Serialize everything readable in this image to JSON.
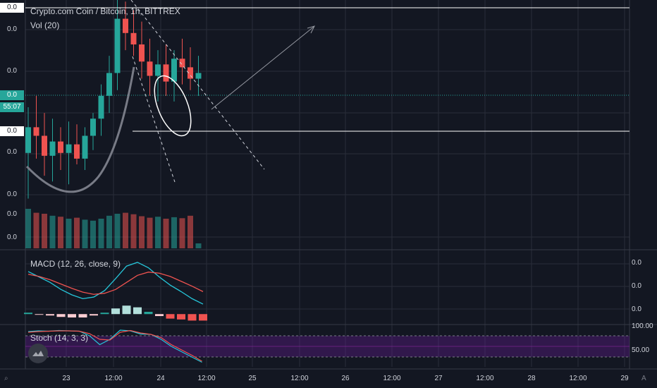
{
  "header": {
    "title": "Crypto.com Coin / Bitcoin, 1h, BITTREX",
    "vol_legend": "Vol (20)",
    "macd_legend": "MACD (12, 26, close, 9)",
    "stoch_legend": "Stoch (14, 3, 3)"
  },
  "price_axis": {
    "labels": [
      "0.0",
      "0.0",
      "0.0",
      "0.0",
      "0.0",
      "0.0",
      "0.0",
      "0.0",
      "0.0"
    ],
    "countdown": "55:07"
  },
  "macd_axis": {
    "labels": [
      "0.0",
      "0.0",
      "0.0"
    ]
  },
  "stoch_axis": {
    "labels": [
      "100.00",
      "50.00"
    ]
  },
  "time_axis": {
    "labels": [
      "23",
      "12:00",
      "24",
      "12:00",
      "25",
      "12:00",
      "26",
      "12:00",
      "27",
      "12:00",
      "28",
      "12:00",
      "29"
    ]
  },
  "corner_buttons": {
    "timezone_marker": "⌕",
    "auto": "A"
  },
  "colors": {
    "background": "#131722",
    "up": "#26a69a",
    "down": "#ef5350",
    "macd_line": "#26c6da",
    "signal_line": "#ef5350",
    "stoch_band": "#6a1b9a"
  },
  "chart_data": [
    {
      "type": "candlestick",
      "title": "Crypto.com Coin / Bitcoin, 1h, BITTREX",
      "x": [
        "22 18:00",
        "22 20:00",
        "22 22:00",
        "23 00:00",
        "23 02:00",
        "23 04:00",
        "23 06:00",
        "23 08:00",
        "23 10:00",
        "23 12:00",
        "23 14:00",
        "23 16:00",
        "23 18:00",
        "23 20:00",
        "23 22:00",
        "24 00:00",
        "24 02:00",
        "24 04:00",
        "24 06:00",
        "24 08:00",
        "24 10:00",
        "24 12:00"
      ],
      "series": [
        {
          "values": [
            {
              "o": 0.46,
              "h": 0.62,
              "l": 0.3,
              "c": 0.55
            },
            {
              "o": 0.55,
              "h": 0.66,
              "l": 0.44,
              "c": 0.52
            },
            {
              "o": 0.52,
              "h": 0.6,
              "l": 0.38,
              "c": 0.45
            },
            {
              "o": 0.45,
              "h": 0.58,
              "l": 0.36,
              "c": 0.5
            },
            {
              "o": 0.5,
              "h": 0.55,
              "l": 0.4,
              "c": 0.46
            },
            {
              "o": 0.46,
              "h": 0.57,
              "l": 0.35,
              "c": 0.49
            },
            {
              "o": 0.49,
              "h": 0.56,
              "l": 0.42,
              "c": 0.44
            },
            {
              "o": 0.44,
              "h": 0.55,
              "l": 0.4,
              "c": 0.52
            },
            {
              "o": 0.52,
              "h": 0.6,
              "l": 0.47,
              "c": 0.58
            },
            {
              "o": 0.58,
              "h": 0.7,
              "l": 0.52,
              "c": 0.66
            },
            {
              "o": 0.66,
              "h": 0.8,
              "l": 0.6,
              "c": 0.74
            },
            {
              "o": 0.74,
              "h": 1.0,
              "l": 0.68,
              "c": 0.93
            },
            {
              "o": 0.93,
              "h": 0.99,
              "l": 0.82,
              "c": 0.88
            },
            {
              "o": 0.88,
              "h": 0.96,
              "l": 0.8,
              "c": 0.84
            },
            {
              "o": 0.84,
              "h": 0.92,
              "l": 0.72,
              "c": 0.78
            },
            {
              "o": 0.78,
              "h": 0.86,
              "l": 0.66,
              "c": 0.73
            },
            {
              "o": 0.73,
              "h": 0.82,
              "l": 0.64,
              "c": 0.77
            },
            {
              "o": 0.77,
              "h": 0.84,
              "l": 0.66,
              "c": 0.71
            },
            {
              "o": 0.71,
              "h": 0.82,
              "l": 0.64,
              "c": 0.79
            },
            {
              "o": 0.79,
              "h": 0.86,
              "l": 0.7,
              "c": 0.76
            },
            {
              "o": 0.76,
              "h": 0.83,
              "l": 0.68,
              "c": 0.72
            },
            {
              "o": 0.72,
              "h": 0.8,
              "l": 0.66,
              "c": 0.74
            }
          ]
        }
      ],
      "volume": [
        0.8,
        0.72,
        0.7,
        0.66,
        0.64,
        0.6,
        0.62,
        0.58,
        0.56,
        0.6,
        0.66,
        0.7,
        0.72,
        0.69,
        0.65,
        0.62,
        0.64,
        0.6,
        0.63,
        0.61,
        0.66,
        0.1
      ],
      "ylim": [
        0.2,
        1.05
      ]
    },
    {
      "type": "line",
      "title": "MACD (12, 26, close, 9)",
      "series": [
        {
          "name": "MACD",
          "values": [
            0.55,
            0.45,
            0.35,
            0.22,
            0.12,
            0.05,
            0.08,
            0.2,
            0.42,
            0.65,
            0.72,
            0.62,
            0.45,
            0.3,
            0.18,
            0.05,
            -0.05
          ]
        },
        {
          "name": "Signal",
          "values": [
            0.5,
            0.46,
            0.4,
            0.32,
            0.24,
            0.17,
            0.13,
            0.15,
            0.22,
            0.35,
            0.48,
            0.54,
            0.52,
            0.46,
            0.37,
            0.28,
            0.18
          ]
        }
      ],
      "histogram": [
        0.05,
        -0.01,
        -0.05,
        -0.1,
        -0.12,
        -0.12,
        -0.05,
        0.05,
        0.2,
        0.3,
        0.24,
        0.08,
        -0.07,
        -0.16,
        -0.19,
        -0.23,
        -0.23
      ],
      "ylim": [
        -0.4,
        0.9
      ]
    },
    {
      "type": "line",
      "title": "Stoch (14, 3, 3)",
      "series": [
        {
          "name": "%K",
          "values": [
            92,
            94,
            93,
            95,
            94,
            93,
            80,
            55,
            70,
            96,
            94,
            85,
            84,
            70,
            50,
            35,
            20,
            5
          ]
        },
        {
          "name": "%D",
          "values": [
            90,
            92,
            93,
            94,
            94,
            93,
            86,
            70,
            68,
            90,
            95,
            88,
            84,
            75,
            55,
            40,
            25,
            8
          ]
        }
      ],
      "ylim": [
        0,
        100
      ]
    }
  ]
}
